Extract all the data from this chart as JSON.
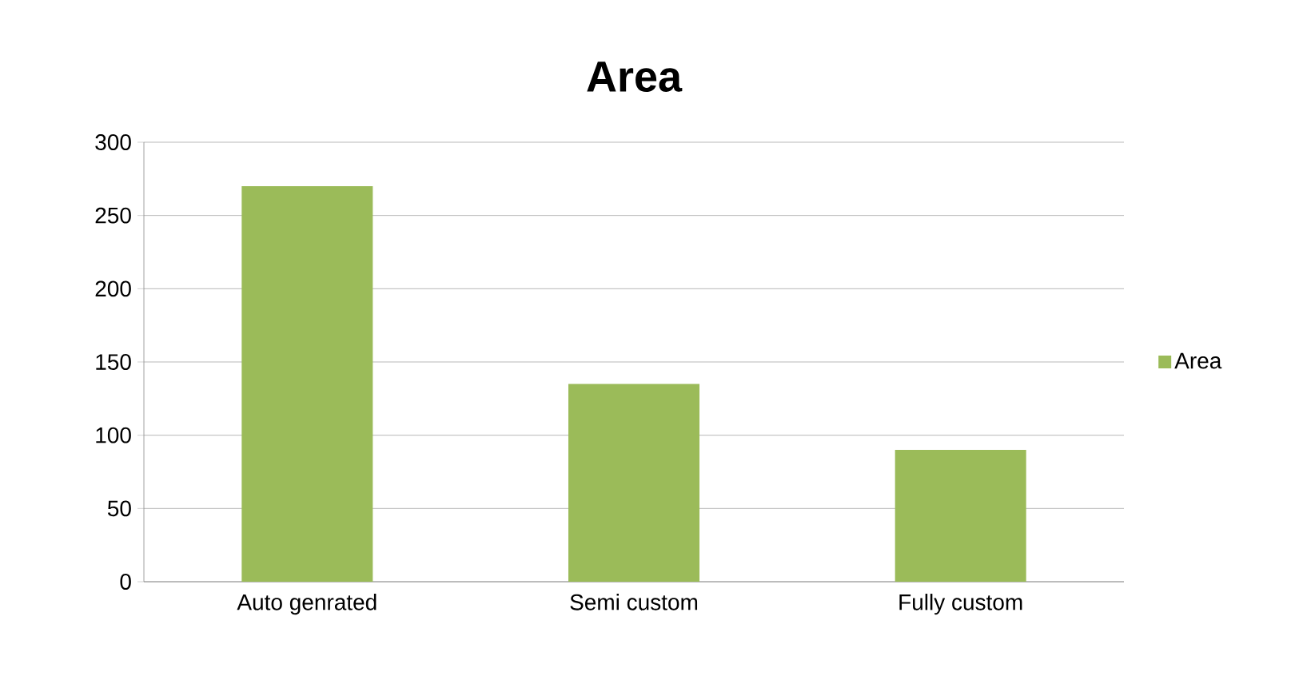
{
  "chart_data": {
    "type": "bar",
    "title": "Area",
    "categories": [
      "Auto genrated",
      "Semi custom",
      "Fully custom"
    ],
    "series": [
      {
        "name": "Area",
        "color": "#9bbb59",
        "values": [
          270,
          135,
          90
        ]
      }
    ],
    "ylim": [
      0,
      300
    ],
    "yticks": [
      0,
      50,
      100,
      150,
      200,
      250,
      300
    ],
    "grid": "y",
    "legend": "right"
  }
}
